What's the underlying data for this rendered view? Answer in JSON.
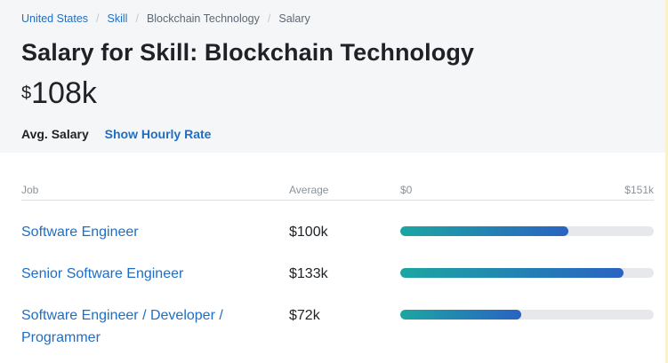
{
  "breadcrumb": [
    {
      "label": "United States",
      "link": true
    },
    {
      "label": "Skill",
      "link": true
    },
    {
      "label": "Blockchain Technology",
      "link": false
    },
    {
      "label": "Salary",
      "link": false
    }
  ],
  "breadcrumb_separator": "/",
  "page_title": "Salary for Skill: Blockchain Technology",
  "salary": {
    "currency": "$",
    "amount": "108k"
  },
  "avg_label": "Avg. Salary",
  "hourly_link": "Show Hourly Rate",
  "table": {
    "headers": {
      "job": "Job",
      "average": "Average",
      "min": "$0",
      "max": "$151k"
    },
    "range_max_k": 151,
    "rows": [
      {
        "job": "Software Engineer",
        "average": "$100k",
        "value_k": 100
      },
      {
        "job": "Senior Software Engineer",
        "average": "$133k",
        "value_k": 133
      },
      {
        "job": "Software Engineer / Developer / Programmer",
        "average": "$72k",
        "value_k": 72
      }
    ]
  },
  "colors": {
    "link": "#1f6ec4",
    "bar_start": "#1ba6a2",
    "bar_end": "#2a63c2",
    "track": "#e6e8eb",
    "header_bg": "#f5f6f7"
  }
}
